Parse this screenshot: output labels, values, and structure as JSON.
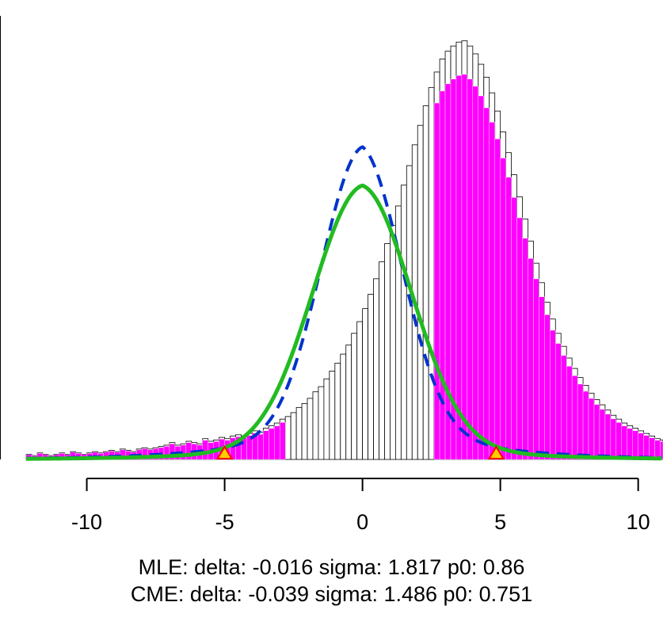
{
  "chart_data": {
    "type": "histogram",
    "xlim": [
      -12.2,
      10.9
    ],
    "x_ticks": [
      -10,
      -5,
      0,
      5,
      10
    ],
    "x_tick_labels": [
      "-10",
      "-5",
      "0",
      "5",
      "10"
    ],
    "bin_width": 0.2,
    "histogram": {
      "x_start": -12.2,
      "heights": [
        0.004,
        0.003,
        0.005,
        0.004,
        0.003,
        0.004,
        0.005,
        0.004,
        0.006,
        0.005,
        0.004,
        0.005,
        0.006,
        0.005,
        0.006,
        0.007,
        0.006,
        0.008,
        0.007,
        0.006,
        0.008,
        0.009,
        0.008,
        0.009,
        0.01,
        0.011,
        0.013,
        0.011,
        0.012,
        0.014,
        0.013,
        0.012,
        0.016,
        0.014,
        0.015,
        0.017,
        0.016,
        0.018,
        0.019,
        0.018,
        0.02,
        0.022,
        0.021,
        0.024,
        0.026,
        0.028,
        0.031,
        0.033,
        0.036,
        0.04,
        0.043,
        0.047,
        0.052,
        0.056,
        0.062,
        0.068,
        0.074,
        0.081,
        0.088,
        0.097,
        0.106,
        0.116,
        0.127,
        0.139,
        0.152,
        0.166,
        0.18,
        0.195,
        0.211,
        0.226,
        0.242,
        0.257,
        0.272,
        0.286,
        0.298,
        0.308,
        0.314,
        0.318,
        0.321,
        0.322,
        0.318,
        0.312,
        0.304,
        0.294,
        0.282,
        0.268,
        0.252,
        0.236,
        0.219,
        0.202,
        0.185,
        0.168,
        0.151,
        0.136,
        0.121,
        0.108,
        0.097,
        0.087,
        0.078,
        0.07,
        0.063,
        0.057,
        0.051,
        0.046,
        0.042,
        0.038,
        0.034,
        0.031,
        0.028,
        0.026,
        0.024,
        0.022,
        0.02,
        0.018,
        0.016,
        0.015,
        0.014,
        0.013,
        0.012,
        0.011,
        0.01,
        0.009,
        0.008,
        0.007,
        0.006,
        0.006,
        0.005,
        0.005,
        0.004,
        0.004
      ],
      "peak": 0.34
    },
    "null_region_highlight": {
      "color": "#ff00ff",
      "ranges": [
        [
          -12.2,
          -2.8
        ],
        [
          2.6,
          10.9
        ]
      ]
    },
    "series": [
      {
        "style": "dashed",
        "color": "#0033cc",
        "sigma": 1.486,
        "p0": 0.751,
        "delta": -0.039
      },
      {
        "style": "solid",
        "color": "#22bb22",
        "sigma": 1.817,
        "p0": 0.86,
        "delta": -0.016
      }
    ],
    "markers": [
      {
        "x": -5.0,
        "shape": "triangle",
        "color": "#ffcc00",
        "stroke": "#ff0000"
      },
      {
        "x": 4.85,
        "shape": "triangle",
        "color": "#ffcc00",
        "stroke": "#ff0000"
      }
    ],
    "grid": false
  },
  "caption": {
    "mle": "MLE: delta: -0.016 sigma: 1.817 p0: 0.86",
    "cme": "CME: delta: -0.039 sigma: 1.486 p0: 0.751"
  }
}
